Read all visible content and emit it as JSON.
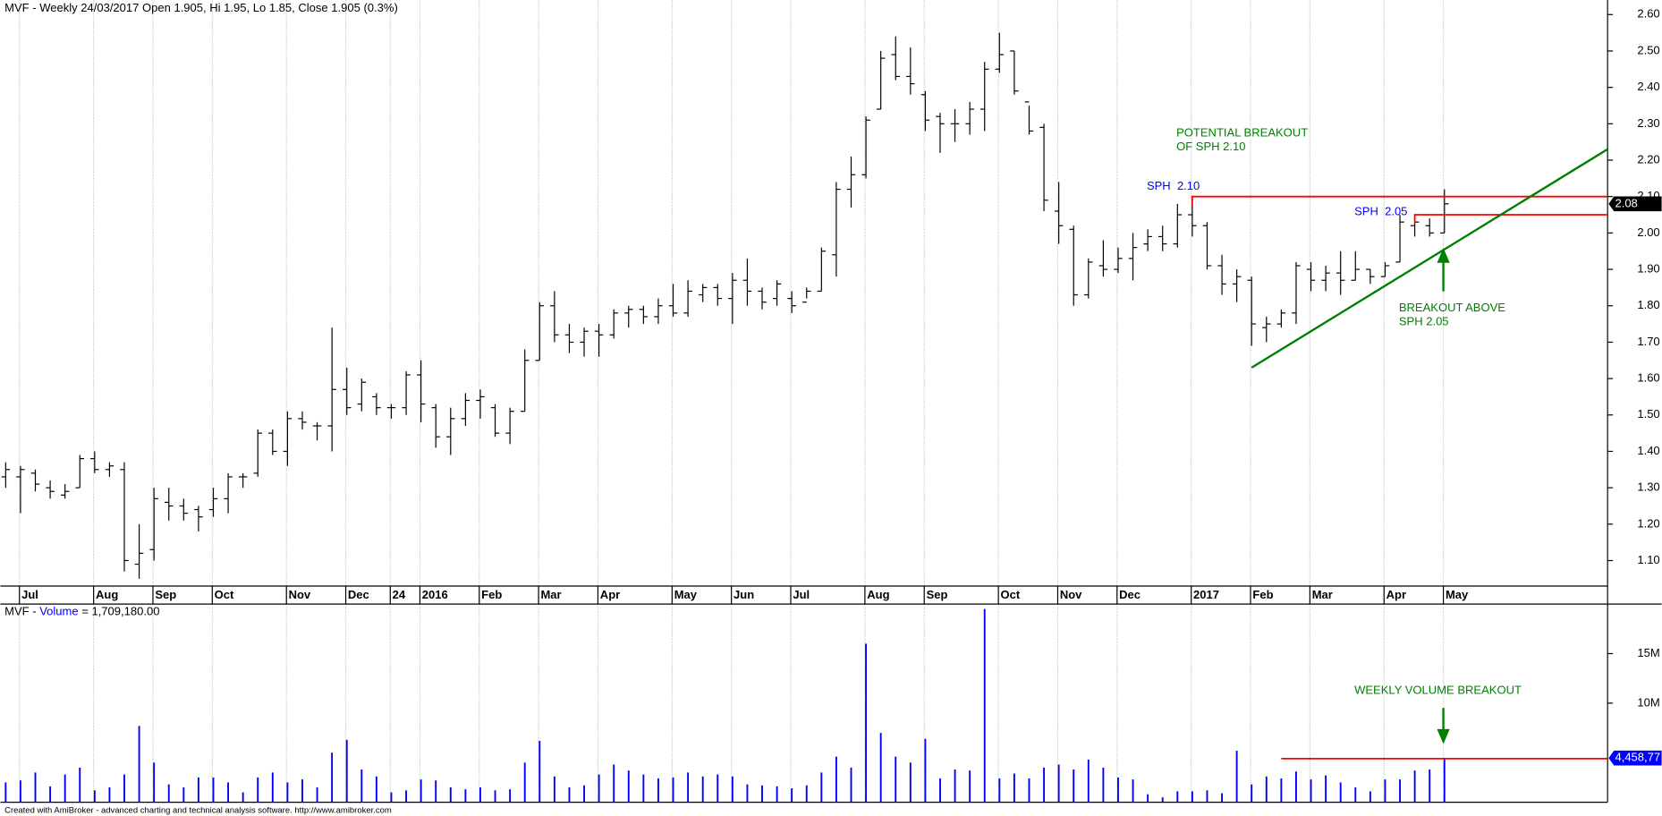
{
  "chart_data": [
    {
      "type": "ohlc",
      "title": "MVF - Weekly 24/03/2017 Open 1.905, Hi 1.95, Lo 1.85, Close 1.905 (0.3%)",
      "categories": [
        null,
        "Jul",
        null,
        null,
        null,
        null,
        "Aug",
        null,
        null,
        null,
        "Sep",
        null,
        null,
        null,
        "Oct",
        null,
        null,
        null,
        null,
        "Nov",
        null,
        null,
        null,
        "Dec",
        null,
        null,
        "24",
        null,
        "2016",
        null,
        null,
        null,
        "Feb",
        null,
        null,
        null,
        "Mar",
        null,
        null,
        null,
        "Apr",
        null,
        null,
        null,
        null,
        "May",
        null,
        null,
        null,
        "Jun",
        null,
        null,
        null,
        "Jul",
        null,
        null,
        null,
        null,
        "Aug",
        null,
        null,
        null,
        "Sep",
        null,
        null,
        null,
        null,
        "Oct",
        null,
        null,
        null,
        "Nov",
        null,
        null,
        null,
        "Dec",
        null,
        null,
        null,
        null,
        "2017",
        null,
        null,
        null,
        "Feb",
        null,
        null,
        null,
        "Mar",
        null,
        null,
        null,
        null,
        "Apr",
        null,
        null,
        null,
        "May"
      ],
      "open": [
        1.33,
        1.33,
        1.34,
        1.3,
        1.28,
        1.3,
        1.38,
        1.35,
        1.35,
        1.09,
        1.13,
        1.26,
        1.25,
        1.24,
        1.24,
        1.27,
        1.33,
        1.34,
        1.45,
        1.4,
        1.49,
        1.47,
        1.47,
        1.57,
        1.53,
        1.55,
        1.52,
        1.52,
        1.61,
        1.52,
        1.44,
        1.49,
        1.54,
        1.52,
        1.45,
        1.51,
        1.65,
        1.8,
        1.72,
        1.7,
        1.73,
        1.72,
        1.78,
        1.79,
        1.77,
        1.8,
        1.78,
        1.83,
        1.85,
        1.82,
        1.87,
        1.84,
        1.82,
        1.82,
        1.81,
        1.84,
        1.94,
        2.12,
        2.16,
        2.34,
        2.49,
        2.43,
        2.38,
        2.32,
        2.3,
        2.3,
        2.34,
        2.45,
        2.5,
        2.36,
        2.29,
        2.06,
        2.01,
        1.83,
        1.91,
        1.9,
        1.93,
        1.97,
        1.99,
        1.97,
        2.05,
        2.02,
        1.91,
        1.86,
        1.87,
        1.74,
        1.75,
        1.78,
        1.9,
        1.87,
        1.89,
        1.87,
        1.9,
        1.88,
        1.92,
        2.02,
        2.02,
        2.0
      ],
      "high": [
        1.37,
        1.36,
        1.35,
        1.32,
        1.31,
        1.39,
        1.4,
        1.37,
        1.37,
        1.2,
        1.3,
        1.3,
        1.27,
        1.25,
        1.3,
        1.34,
        1.34,
        1.46,
        1.46,
        1.51,
        1.51,
        1.48,
        1.74,
        1.63,
        1.6,
        1.56,
        1.53,
        1.62,
        1.65,
        1.53,
        1.52,
        1.56,
        1.57,
        1.53,
        1.52,
        1.68,
        1.81,
        1.84,
        1.75,
        1.74,
        1.75,
        1.79,
        1.8,
        1.8,
        1.82,
        1.86,
        1.87,
        1.86,
        1.86,
        1.89,
        1.93,
        1.85,
        1.87,
        1.84,
        1.85,
        1.96,
        2.14,
        2.21,
        2.32,
        2.5,
        2.54,
        2.51,
        2.39,
        2.33,
        2.34,
        2.36,
        2.47,
        2.55,
        2.5,
        2.35,
        2.3,
        2.14,
        2.02,
        1.93,
        1.98,
        1.96,
        2.0,
        2.01,
        2.02,
        2.08,
        2.1,
        2.03,
        1.94,
        1.9,
        1.88,
        1.77,
        1.79,
        1.92,
        1.92,
        1.91,
        1.95,
        1.95,
        1.9,
        1.92,
        2.05,
        2.05,
        2.04,
        2.12
      ],
      "low": [
        1.3,
        1.23,
        1.29,
        1.27,
        1.27,
        1.3,
        1.34,
        1.33,
        1.07,
        1.05,
        1.1,
        1.21,
        1.21,
        1.18,
        1.22,
        1.23,
        1.3,
        1.33,
        1.39,
        1.36,
        1.46,
        1.43,
        1.4,
        1.5,
        1.51,
        1.5,
        1.49,
        1.5,
        1.48,
        1.41,
        1.39,
        1.47,
        1.49,
        1.44,
        1.42,
        1.51,
        1.65,
        1.7,
        1.67,
        1.66,
        1.66,
        1.71,
        1.74,
        1.75,
        1.75,
        1.77,
        1.77,
        1.81,
        1.8,
        1.75,
        1.8,
        1.79,
        1.8,
        1.78,
        1.82,
        1.84,
        1.88,
        2.07,
        2.15,
        2.34,
        2.42,
        2.38,
        2.28,
        2.22,
        2.25,
        2.27,
        2.28,
        2.44,
        2.38,
        2.27,
        2.06,
        1.97,
        1.8,
        1.82,
        1.88,
        1.89,
        1.87,
        1.95,
        1.95,
        1.96,
        1.99,
        1.9,
        1.83,
        1.81,
        1.69,
        1.7,
        1.74,
        1.75,
        1.84,
        1.84,
        1.83,
        1.87,
        1.86,
        1.88,
        1.92,
        1.99,
        1.99,
        2.0
      ],
      "close": [
        1.35,
        1.35,
        1.31,
        1.29,
        1.29,
        1.38,
        1.35,
        1.36,
        1.1,
        1.12,
        1.27,
        1.25,
        1.23,
        1.22,
        1.27,
        1.33,
        1.33,
        1.45,
        1.4,
        1.49,
        1.48,
        1.47,
        1.57,
        1.52,
        1.59,
        1.52,
        1.52,
        1.61,
        1.53,
        1.44,
        1.49,
        1.54,
        1.55,
        1.45,
        1.51,
        1.65,
        1.8,
        1.72,
        1.7,
        1.73,
        1.72,
        1.78,
        1.79,
        1.77,
        1.8,
        1.78,
        1.84,
        1.85,
        1.82,
        1.87,
        1.84,
        1.81,
        1.86,
        1.8,
        1.84,
        1.95,
        2.12,
        2.16,
        2.31,
        2.48,
        2.43,
        2.41,
        2.31,
        2.3,
        2.3,
        2.34,
        2.45,
        2.49,
        2.39,
        2.28,
        2.09,
        2.02,
        1.83,
        1.92,
        1.9,
        1.93,
        1.96,
        1.99,
        1.97,
        2.05,
        2.02,
        1.91,
        1.86,
        1.88,
        1.75,
        1.75,
        1.78,
        1.91,
        1.87,
        1.89,
        1.87,
        1.9,
        1.88,
        1.91,
        2.03,
        2.03,
        2.0,
        2.08
      ],
      "color": "#000000",
      "ylim": [
        1.03,
        2.64
      ],
      "yticks": [
        {
          "value": 1.1,
          "label": "1.10"
        },
        {
          "value": 1.2,
          "label": "1.20"
        },
        {
          "value": 1.3,
          "label": "1.30"
        },
        {
          "value": 1.4,
          "label": "1.40"
        },
        {
          "value": 1.5,
          "label": "1.50"
        },
        {
          "value": 1.6,
          "label": "1.60"
        },
        {
          "value": 1.7,
          "label": "1.70"
        },
        {
          "value": 1.8,
          "label": "1.80"
        },
        {
          "value": 1.9,
          "label": "1.90"
        },
        {
          "value": 2.0,
          "label": "2.00"
        },
        {
          "value": 2.1,
          "label": "2.10"
        },
        {
          "value": 2.2,
          "label": "2.20"
        },
        {
          "value": 2.3,
          "label": "2.30"
        },
        {
          "value": 2.4,
          "label": "2.40"
        },
        {
          "value": 2.5,
          "label": "2.50"
        },
        {
          "value": 2.6,
          "label": "2.60"
        }
      ],
      "last_value": {
        "value": 2.08,
        "label": "2.08"
      },
      "resistance": [
        {
          "text": "SPH  2.10",
          "value": 2.1,
          "color": "#ff0000"
        },
        {
          "text": "SPH  2.05",
          "value": 2.05,
          "color": "#ff0000"
        }
      ],
      "trendline": {
        "color": "#008000",
        "values": [
          1.63,
          2.23
        ]
      },
      "annotations": [
        [
          "POTENTIAL BREAKOUT",
          "OF SPH 2.10"
        ],
        [
          "BREAKOUT ABOVE",
          "SPH 2.05"
        ]
      ]
    },
    {
      "type": "bar",
      "title_prefix": "MVF - ",
      "title_suffix": " = 1,709,180.00",
      "series": [
        {
          "name": "Volume",
          "color": "#0000ff",
          "values": [
            2000000,
            2200000,
            3000000,
            1600000,
            2800000,
            3500000,
            1200000,
            1500000,
            2800000,
            7700000,
            4000000,
            1800000,
            1500000,
            2500000,
            2500000,
            2000000,
            1000000,
            2500000,
            3000000,
            2000000,
            2300000,
            1500000,
            5000000,
            6300000,
            3300000,
            2600000,
            1000000,
            1200000,
            2300000,
            2200000,
            1500000,
            1300000,
            1500000,
            1200000,
            1300000,
            4000000,
            6200000,
            2600000,
            1500000,
            1700000,
            2800000,
            3800000,
            3200000,
            2800000,
            2400000,
            2500000,
            3000000,
            2600000,
            2800000,
            2600000,
            1800000,
            1700000,
            1600000,
            1400000,
            1700000,
            3000000,
            4600000,
            3500000,
            16000000,
            7000000,
            4600000,
            4000000,
            6400000,
            2400000,
            3300000,
            3200000,
            19500000,
            2400000,
            2900000,
            2400000,
            3500000,
            3800000,
            3300000,
            4300000,
            3500000,
            2500000,
            2300000,
            800000,
            500000,
            1100000,
            1100000,
            1200000,
            900000,
            5200000,
            1800000,
            2600000,
            2400000,
            3100000,
            2300000,
            2700000,
            2000000,
            1500000,
            1100000,
            2300000,
            2300000,
            3200000,
            3300000,
            4458770
          ]
        }
      ],
      "ylim": [
        0,
        20000000
      ],
      "yticks": [
        {
          "value": 10000000,
          "label": "10M"
        },
        {
          "value": 15000000,
          "label": "15M"
        }
      ],
      "last_value": {
        "value": 4458770,
        "label": "4,458,77"
      },
      "breakout_line": {
        "value": 4400000,
        "color": "#ff0000"
      },
      "annotation": "WEEKLY VOLUME BREAKOUT"
    }
  ],
  "footer": "Created with AmiBroker - advanced charting and technical analysis software. http://www.amibroker.com"
}
